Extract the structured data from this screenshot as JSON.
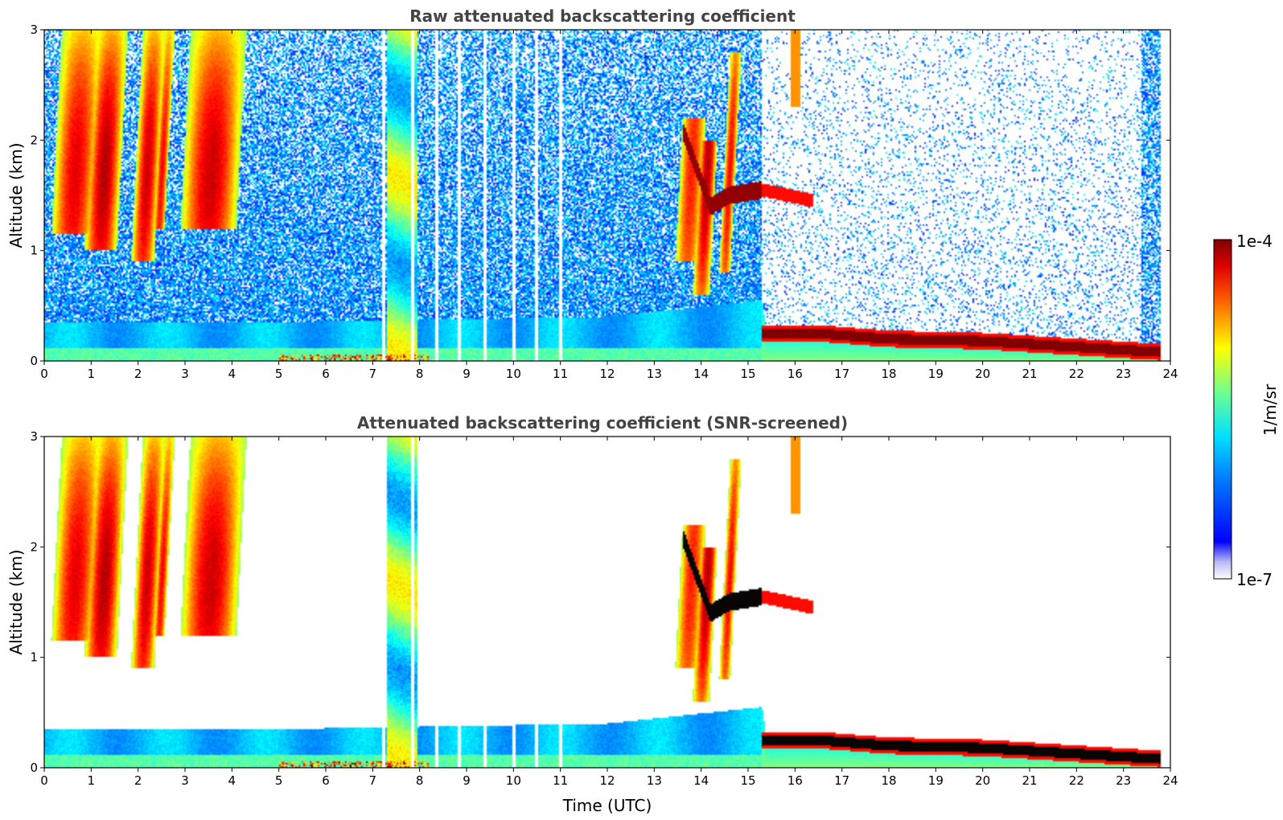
{
  "chart_data": [
    {
      "type": "heatmap",
      "title": "Raw attenuated backscattering coefficient",
      "xlabel": "",
      "ylabel": "Altitude (km)",
      "xlim": [
        0,
        24
      ],
      "ylim": [
        0,
        3
      ],
      "x_ticks": [
        "0",
        "1",
        "2",
        "3",
        "4",
        "5",
        "6",
        "7",
        "8",
        "9",
        "10",
        "11",
        "12",
        "13",
        "14",
        "15",
        "16",
        "17",
        "18",
        "19",
        "20",
        "21",
        "22",
        "23",
        "24"
      ],
      "y_ticks": [
        "0",
        "1",
        "2",
        "3"
      ],
      "screened": false
    },
    {
      "type": "heatmap",
      "title": "Attenuated backscattering coefficient (SNR-screened)",
      "xlabel": "Time (UTC)",
      "ylabel": "Altitude (km)",
      "xlim": [
        0,
        24
      ],
      "ylim": [
        0,
        3
      ],
      "x_ticks": [
        "0",
        "1",
        "2",
        "3",
        "4",
        "5",
        "6",
        "7",
        "8",
        "9",
        "10",
        "11",
        "12",
        "13",
        "14",
        "15",
        "16",
        "17",
        "18",
        "19",
        "20",
        "21",
        "22",
        "23",
        "24"
      ],
      "y_ticks": [
        "0",
        "1",
        "2",
        "3"
      ],
      "screened": true
    }
  ],
  "colorbar": {
    "max_label": "1e-4",
    "min_label": "1e-7",
    "unit_label": "1/m/sr",
    "scale": "log",
    "colormap": "jet"
  },
  "features": {
    "boundary_layer_top_km": [
      [
        0,
        0.35
      ],
      [
        5,
        0.35
      ],
      [
        12,
        0.4
      ],
      [
        15.3,
        0.55
      ],
      [
        15.4,
        0.25
      ],
      [
        16.5,
        0.27
      ],
      [
        19,
        0.2
      ],
      [
        23.8,
        0.1
      ]
    ],
    "dense_layer_km": [
      [
        15.3,
        0.25
      ],
      [
        16.5,
        0.25
      ],
      [
        18,
        0.2
      ],
      [
        20,
        0.18
      ],
      [
        23.8,
        0.08
      ]
    ],
    "elevated_layer_km": [
      [
        13.6,
        2.1
      ],
      [
        14.2,
        1.4
      ],
      [
        14.6,
        1.5
      ],
      [
        15.3,
        1.55
      ],
      [
        16.4,
        1.45
      ]
    ],
    "data_end_hour": 23.8
  },
  "colors": {
    "background": "#ffffff",
    "title": "#444444"
  }
}
